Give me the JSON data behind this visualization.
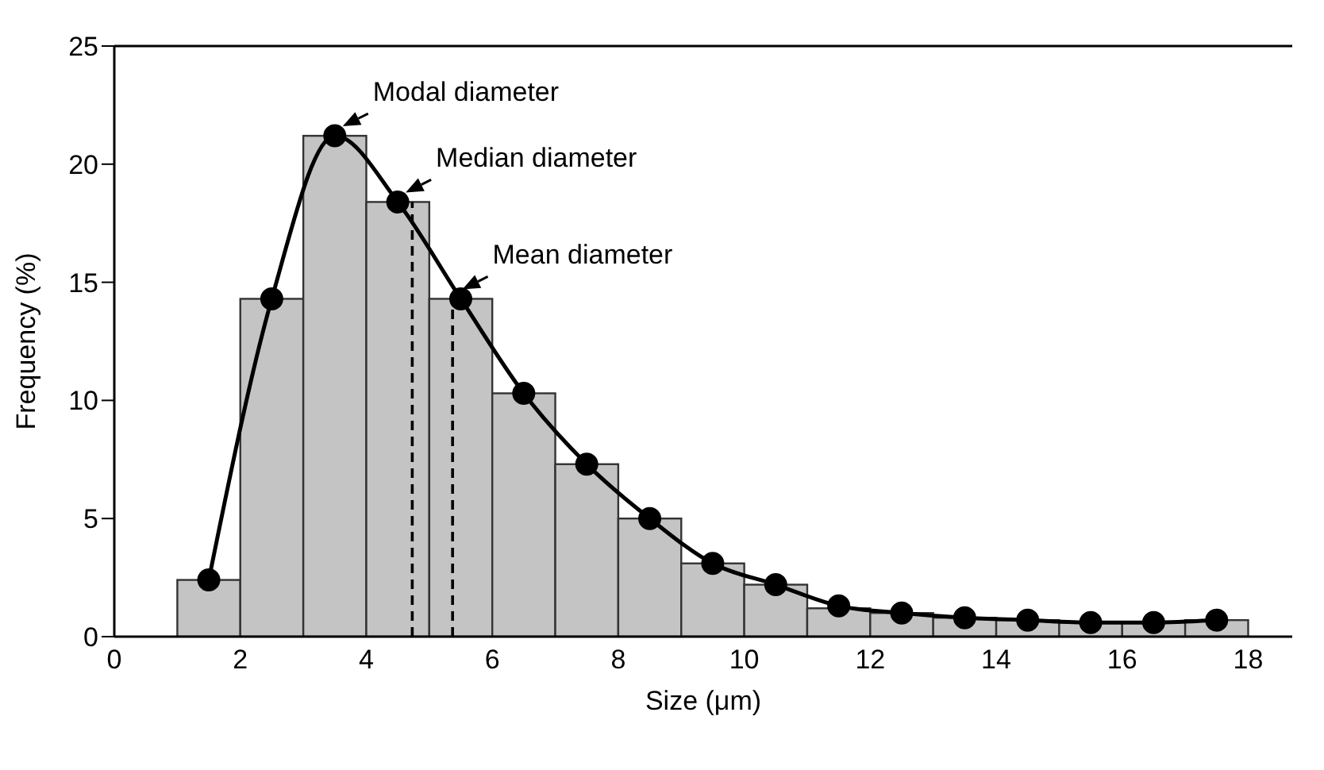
{
  "chart_data": {
    "type": "histogram",
    "bins": [
      1,
      2,
      3,
      4,
      5,
      6,
      7,
      8,
      9,
      10,
      11,
      12,
      13,
      14,
      15,
      16,
      17,
      18
    ],
    "values": [
      2.4,
      14.3,
      21.2,
      18.4,
      14.3,
      10.3,
      7.3,
      5.0,
      3.1,
      2.2,
      1.2,
      1.0,
      0.8,
      0.7,
      0.6,
      0.6,
      0.7
    ],
    "color": "#c4c4c4",
    "series": [
      {
        "type": "line",
        "color": "#000000",
        "x": [
          1.5,
          2.5,
          3.5,
          4.5,
          5.5,
          6.5,
          7.5,
          8.5,
          9.5,
          10.5,
          11.5,
          12.5,
          13.5,
          14.5,
          15.5,
          16.5,
          17.5
        ],
        "values": [
          2.4,
          14.3,
          21.2,
          18.4,
          14.3,
          10.3,
          7.3,
          5.0,
          3.1,
          2.2,
          1.3,
          1.0,
          0.8,
          0.7,
          0.6,
          0.6,
          0.7
        ]
      }
    ],
    "marker": "circle",
    "line_style": "solid",
    "xlabel": "Size (μm)",
    "ylabel": "Frequency (%)",
    "xlim": [
      0,
      18.7
    ],
    "xticks": [
      0,
      2,
      4,
      6,
      8,
      10,
      12,
      14,
      16,
      18
    ],
    "ylim": [
      0,
      25
    ],
    "yticks": [
      0,
      5,
      10,
      15,
      20,
      25
    ],
    "ref_lines": [
      {
        "axis": "x",
        "value": 4.73,
        "color": "#000000",
        "line_style": "dashed"
      },
      {
        "axis": "x",
        "value": 5.37,
        "color": "#000000",
        "line_style": "dashed"
      }
    ],
    "annotations": [
      {
        "text": "Modal diameter",
        "x": 3.5,
        "y": 21.2
      },
      {
        "text": "Median diameter",
        "x": 4.5,
        "y": 18.4
      },
      {
        "text": "Mean diameter",
        "x": 5.4,
        "y": 14.3
      }
    ]
  }
}
